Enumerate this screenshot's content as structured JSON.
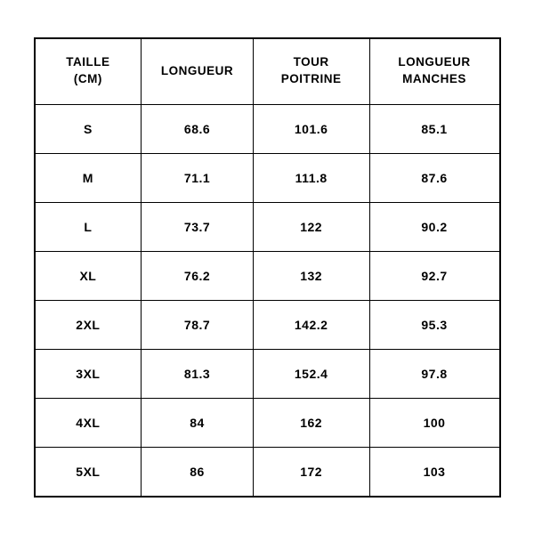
{
  "table": {
    "type": "table",
    "background_color": "#ffffff",
    "border_color": "#000000",
    "text_color": "#000000",
    "font_weight": "700",
    "header_fontsize": 13.5,
    "cell_fontsize": 14,
    "n_cols": 4,
    "n_rows": 8,
    "columns": [
      {
        "label_line1": "TAILLE",
        "label_line2": "(CM)",
        "width_pct": 23
      },
      {
        "label_line1": "LONGUEUR",
        "label_line2": "",
        "width_pct": 24
      },
      {
        "label_line1": "TOUR",
        "label_line2": "POITRINE",
        "width_pct": 25
      },
      {
        "label_line1": "LONGUEUR",
        "label_line2": "MANCHES",
        "width_pct": 28
      }
    ],
    "rows": [
      {
        "size": "S",
        "longueur": "68.6",
        "tour_poitrine": "101.6",
        "longueur_manches": "85.1"
      },
      {
        "size": "M",
        "longueur": "71.1",
        "tour_poitrine": "111.8",
        "longueur_manches": "87.6"
      },
      {
        "size": "L",
        "longueur": "73.7",
        "tour_poitrine": "122",
        "longueur_manches": "90.2"
      },
      {
        "size": "XL",
        "longueur": "76.2",
        "tour_poitrine": "132",
        "longueur_manches": "92.7"
      },
      {
        "size": "2XL",
        "longueur": "78.7",
        "tour_poitrine": "142.2",
        "longueur_manches": "95.3"
      },
      {
        "size": "3XL",
        "longueur": "81.3",
        "tour_poitrine": "152.4",
        "longueur_manches": "97.8"
      },
      {
        "size": "4XL",
        "longueur": "84",
        "tour_poitrine": "162",
        "longueur_manches": "100"
      },
      {
        "size": "5XL",
        "longueur": "86",
        "tour_poitrine": "172",
        "longueur_manches": "103"
      }
    ]
  }
}
